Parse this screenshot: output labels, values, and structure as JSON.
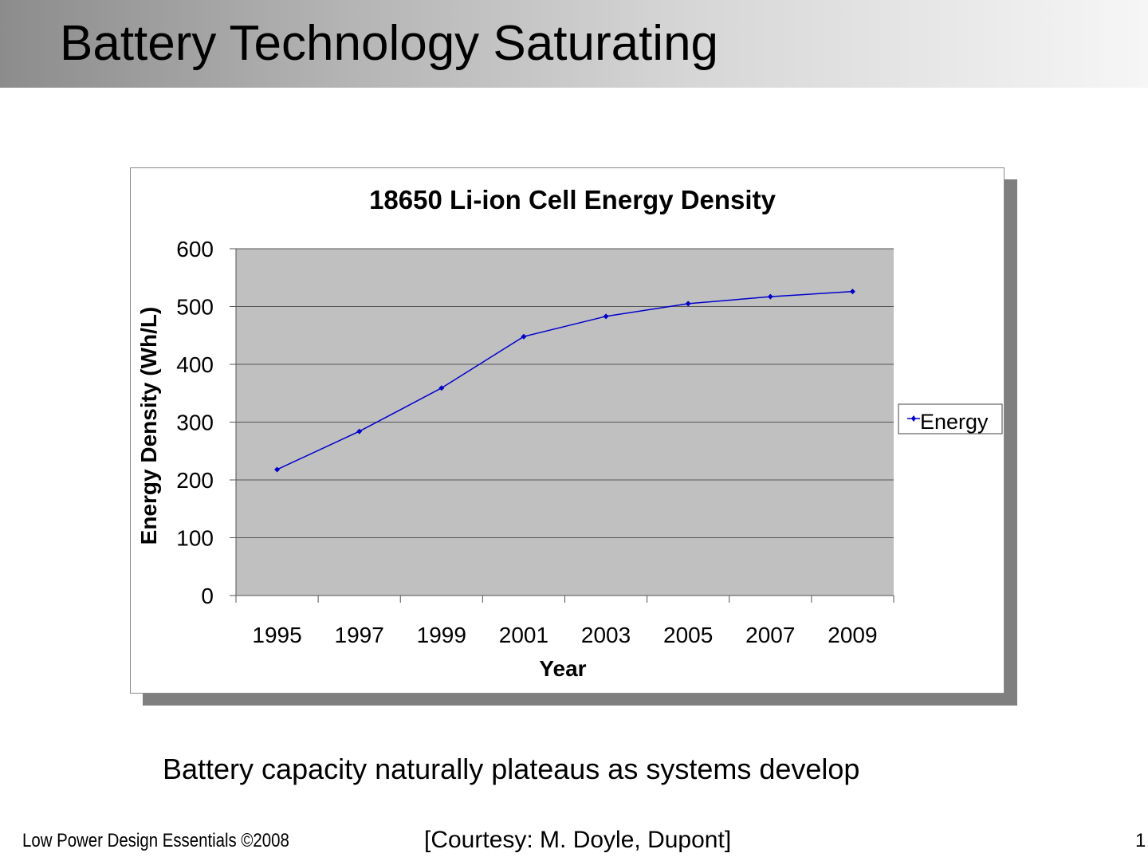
{
  "slide": {
    "title": "Battery Technology Saturating",
    "subtitle": "Battery capacity naturally plateaus as systems develop",
    "footer_left": "Low Power Design Essentials ©2008",
    "footer_center": "[Courtesy: M. Doyle, Dupont]",
    "page_number": "1"
  },
  "chart_data": {
    "type": "line",
    "title": "18650 Li-ion Cell Energy Density",
    "xlabel": "Year",
    "ylabel": "Energy Density (Wh/L)",
    "categories": [
      "1995",
      "1997",
      "1999",
      "2001",
      "2003",
      "2005",
      "2007",
      "2009"
    ],
    "series": [
      {
        "name": "Energy",
        "values": [
          218,
          284,
          359,
          448,
          483,
          505,
          517,
          526
        ],
        "color": "#0000cc",
        "marker": "diamond"
      }
    ],
    "ylim": [
      0,
      600
    ],
    "yticks": [
      0,
      100,
      200,
      300,
      400,
      500,
      600
    ],
    "grid": true,
    "plot_background": "#c0c0c0",
    "legend": "right"
  }
}
